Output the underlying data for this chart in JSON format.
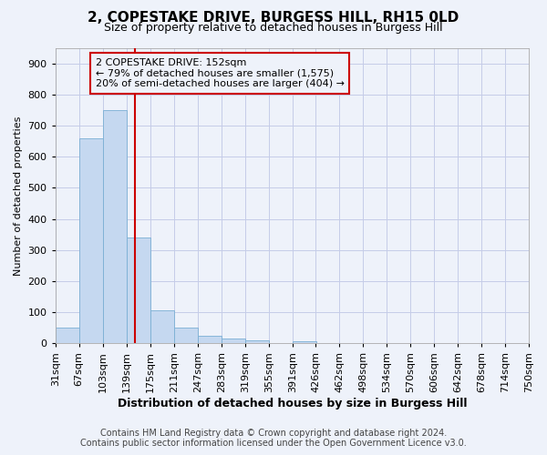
{
  "title": "2, COPESTAKE DRIVE, BURGESS HILL, RH15 0LD",
  "subtitle": "Size of property relative to detached houses in Burgess Hill",
  "xlabel": "Distribution of detached houses by size in Burgess Hill",
  "ylabel": "Number of detached properties",
  "footer1": "Contains HM Land Registry data © Crown copyright and database right 2024.",
  "footer2": "Contains public sector information licensed under the Open Government Licence v3.0.",
  "annotation_line1": "2 COPESTAKE DRIVE: 152sqm",
  "annotation_line2": "← 79% of detached houses are smaller (1,575)",
  "annotation_line3": "20% of semi-detached houses are larger (404) →",
  "bin_edges": [
    31,
    67,
    103,
    139,
    175,
    211,
    247,
    283,
    319,
    355,
    391,
    426,
    462,
    498,
    534,
    570,
    606,
    642,
    678,
    714,
    750
  ],
  "bar_heights": [
    50,
    660,
    750,
    340,
    107,
    50,
    24,
    15,
    10,
    0,
    8,
    0,
    0,
    0,
    0,
    0,
    0,
    0,
    0,
    0
  ],
  "bar_color": "#c5d8f0",
  "bar_edge_color": "#7aafd4",
  "vline_color": "#cc0000",
  "vline_x": 152,
  "ylim": [
    0,
    950
  ],
  "yticks": [
    0,
    100,
    200,
    300,
    400,
    500,
    600,
    700,
    800,
    900
  ],
  "background_color": "#eef2fa",
  "grid_color": "#c5cce8",
  "box_edge_color": "#cc0000",
  "title_fontsize": 11,
  "subtitle_fontsize": 9,
  "xlabel_fontsize": 9,
  "ylabel_fontsize": 8,
  "tick_fontsize": 8,
  "annotation_fontsize": 8,
  "footer_fontsize": 7
}
